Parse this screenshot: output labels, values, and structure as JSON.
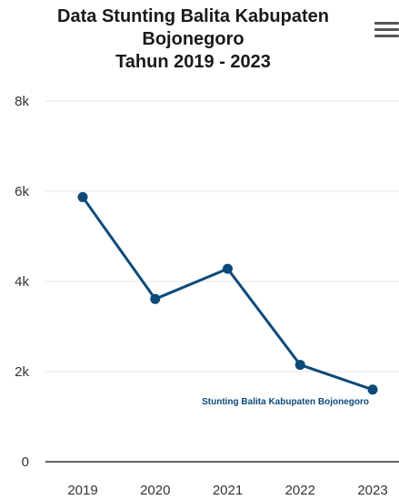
{
  "header": {
    "title_lines": [
      "Data Stunting Balita Kabupaten",
      "Bojonegoro",
      "Tahun 2019 - 2023"
    ],
    "menu_icon": "hamburger-menu-icon"
  },
  "chart_data": {
    "type": "line",
    "title": "Data Stunting Balita Kabupaten Bojonegoro Tahun 2019 - 2023",
    "xlabel": "",
    "ylabel": "",
    "categories": [
      "2019",
      "2020",
      "2021",
      "2022",
      "2023"
    ],
    "series": [
      {
        "name": "Stunting Balita Kabupaten Bojonegoro",
        "values": [
          5870,
          3610,
          4280,
          2150,
          1600
        ],
        "color": "#0d4a7a"
      }
    ],
    "ylim": [
      0,
      8000
    ],
    "y_ticks": [
      {
        "value": 0,
        "label": "0"
      },
      {
        "value": 2000,
        "label": "2k"
      },
      {
        "value": 4000,
        "label": "4k"
      },
      {
        "value": 6000,
        "label": "6k"
      },
      {
        "value": 8000,
        "label": "8k"
      }
    ],
    "grid": true,
    "legend": "none",
    "series_label_position": "end"
  }
}
